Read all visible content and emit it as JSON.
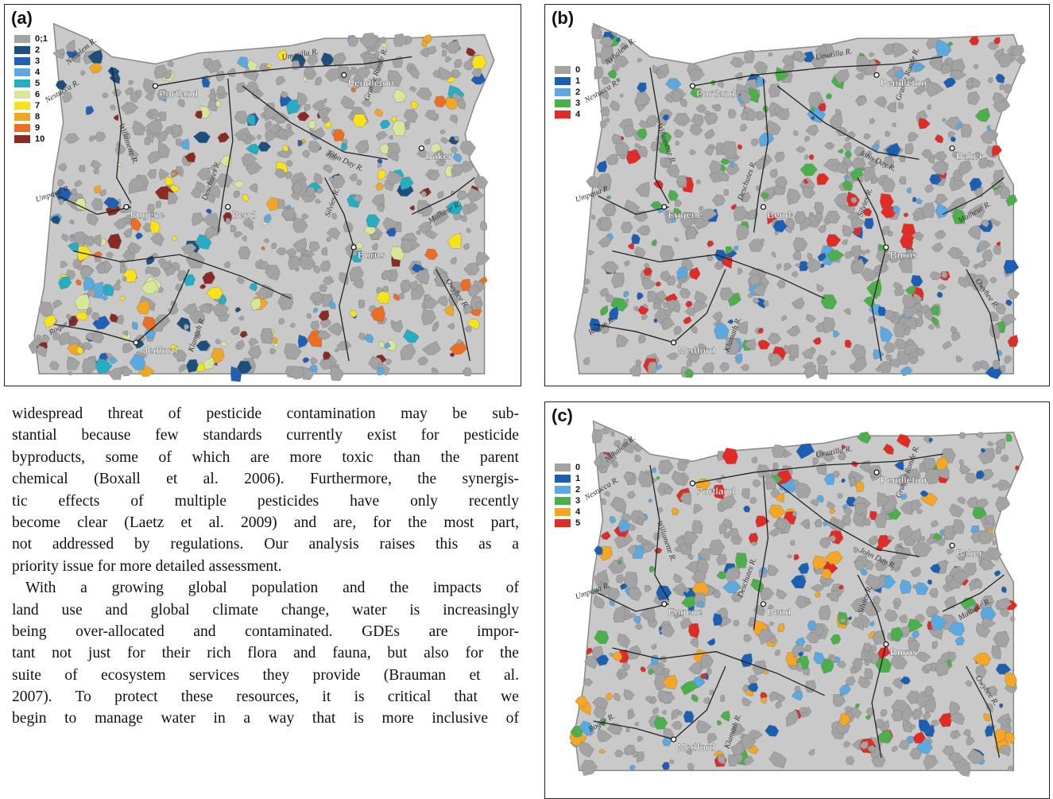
{
  "panels": [
    {
      "label": "(a)",
      "legend": [
        {
          "label": "0;1",
          "color": "#a3a3a3"
        },
        {
          "label": "2",
          "color": "#1d4f7c"
        },
        {
          "label": "3",
          "color": "#1f5fb5"
        },
        {
          "label": "4",
          "color": "#5aa9e0"
        },
        {
          "label": "5",
          "color": "#25aec2"
        },
        {
          "label": "6",
          "color": "#d6e79a"
        },
        {
          "label": "7",
          "color": "#f6e31c"
        },
        {
          "label": "8",
          "color": "#f3a623"
        },
        {
          "label": "9",
          "color": "#eb6e23"
        },
        {
          "label": "10",
          "color": "#8a2a24"
        }
      ],
      "cities": [
        "Portland",
        "Pendleton",
        "Baker",
        "Eugene",
        "Bend",
        "Burns",
        "Medford"
      ],
      "rivers": [
        "Nehalem R.",
        "Nestucca R.",
        "Umatilla R.",
        "Grande Ronde R.",
        "Willamette R.",
        "Deschutes R.",
        "John Day R.",
        "Silvies R.",
        "Malheur R.",
        "Umpqua R.",
        "Owyhee R.",
        "Rogue R.",
        "Klamath R."
      ]
    },
    {
      "label": "(b)",
      "legend": [
        {
          "label": "0",
          "color": "#a3a3a3"
        },
        {
          "label": "1",
          "color": "#1a5fb4"
        },
        {
          "label": "2",
          "color": "#5aa9e0"
        },
        {
          "label": "3",
          "color": "#4cb04a"
        },
        {
          "label": "4",
          "color": "#e32b26"
        }
      ],
      "cities": [
        "Portland",
        "Pendleton",
        "Baker",
        "Eugene",
        "Bend",
        "Burns",
        "Medford"
      ],
      "rivers": [
        "Nehalem R.",
        "Nestucca R.",
        "Umatilla R.",
        "Grande Ronde R.",
        "Willamette R.",
        "Deschutes R.",
        "John Day R.",
        "Silvies R.",
        "Malheur R.",
        "Umpqua R.",
        "Owyhee R.",
        "Rogue R.",
        "Klamath R."
      ]
    },
    {
      "label": "(c)",
      "legend": [
        {
          "label": "0",
          "color": "#a3a3a3"
        },
        {
          "label": "1",
          "color": "#1a5fb4"
        },
        {
          "label": "2",
          "color": "#5aa9e0"
        },
        {
          "label": "3",
          "color": "#4cb04a"
        },
        {
          "label": "4",
          "color": "#f5a623"
        },
        {
          "label": "5",
          "color": "#e32b26"
        }
      ],
      "cities": [
        "Portland",
        "Pendleton",
        "Baker",
        "Eugene",
        "Bend",
        "Burns",
        "Medford"
      ],
      "rivers": [
        "Nehalem R.",
        "Nestucca R.",
        "Umatilla R.",
        "Grande Ronde R.",
        "Willamette R.",
        "Deschutes R.",
        "John Day R.",
        "Silvies R.",
        "Malheur R.",
        "Umpqua R.",
        "Owyhee R.",
        "Rogue R.",
        "Klamath R."
      ]
    }
  ],
  "text": {
    "paragraphs": [
      [
        "widespread threat of pesticide contamination may be sub-",
        "stantial because few standards currently exist for pesticide",
        "byproducts, some of which are more toxic than the parent",
        "chemical (Boxall et al. 2006). Furthermore, the synergis-",
        "tic effects of multiple pesticides have only recently",
        "become clear (Laetz et al. 2009) and are, for the most part,",
        "not addressed by regulations. Our analysis raises this as a",
        "priority issue for more detailed assessment."
      ],
      [
        "With a growing global population and the impacts of",
        "land use and global climate change, water is increasingly",
        "being over-allocated and contaminated. GDEs are impor-",
        "tant not just for their rich flora and fauna, but also for the",
        "suite of ecosystem services they provide (Brauman et al.",
        "2007). To protect these resources, it is critical that we",
        "begin to manage water in a way that is more inclusive of"
      ]
    ]
  }
}
